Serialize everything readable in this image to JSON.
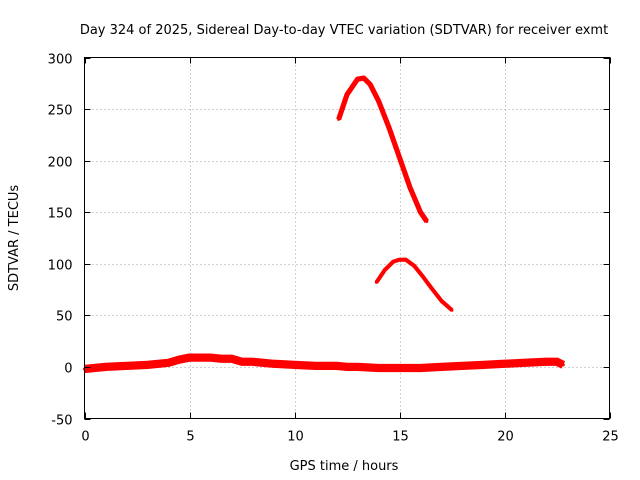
{
  "chart_data": {
    "type": "line",
    "title": "Day 324 of 2025, Sidereal Day-to-day VTEC variation (SDTVAR) for receiver exmt",
    "xlabel": "GPS time / hours",
    "ylabel": "SDTVAR / TECUs",
    "xlim": [
      0,
      25
    ],
    "ylim": [
      -50,
      300
    ],
    "xticks": [
      0,
      5,
      10,
      15,
      20,
      25
    ],
    "yticks": [
      -50,
      0,
      50,
      100,
      150,
      200,
      250,
      300
    ],
    "grid": true,
    "legend": "none",
    "color": "#ff0000",
    "series": [
      {
        "name": "baseline",
        "x": [
          0,
          1,
          2,
          3,
          4,
          4.5,
          5,
          5.5,
          6,
          6.5,
          7,
          7.5,
          8,
          9,
          10,
          11,
          12,
          12.5,
          13,
          14,
          15,
          16,
          17,
          18,
          19,
          20,
          21,
          22,
          22.5,
          22.8
        ],
        "y": [
          -2,
          0,
          1,
          2,
          4,
          7,
          9,
          9,
          9,
          8,
          8,
          5,
          5,
          3,
          2,
          1,
          1,
          0,
          0,
          -1,
          -1,
          -1,
          0,
          1,
          2,
          3,
          4,
          5,
          5,
          2
        ],
        "thickness_tecu": 8
      },
      {
        "name": "arc-1",
        "x": [
          12.1,
          12.5,
          13,
          13.3,
          13.6,
          14,
          14.5,
          15,
          15.5,
          16,
          16.3
        ],
        "y": [
          240,
          264,
          279,
          280,
          274,
          258,
          232,
          203,
          174,
          150,
          141
        ],
        "thickness_tecu": 5
      },
      {
        "name": "arc-2",
        "x": [
          13.9,
          14.3,
          14.7,
          15,
          15.3,
          15.7,
          16.1,
          16.5,
          17,
          17.5
        ],
        "y": [
          82,
          94,
          102,
          104,
          104,
          98,
          88,
          77,
          64,
          55
        ],
        "thickness_tecu": 4
      }
    ]
  }
}
